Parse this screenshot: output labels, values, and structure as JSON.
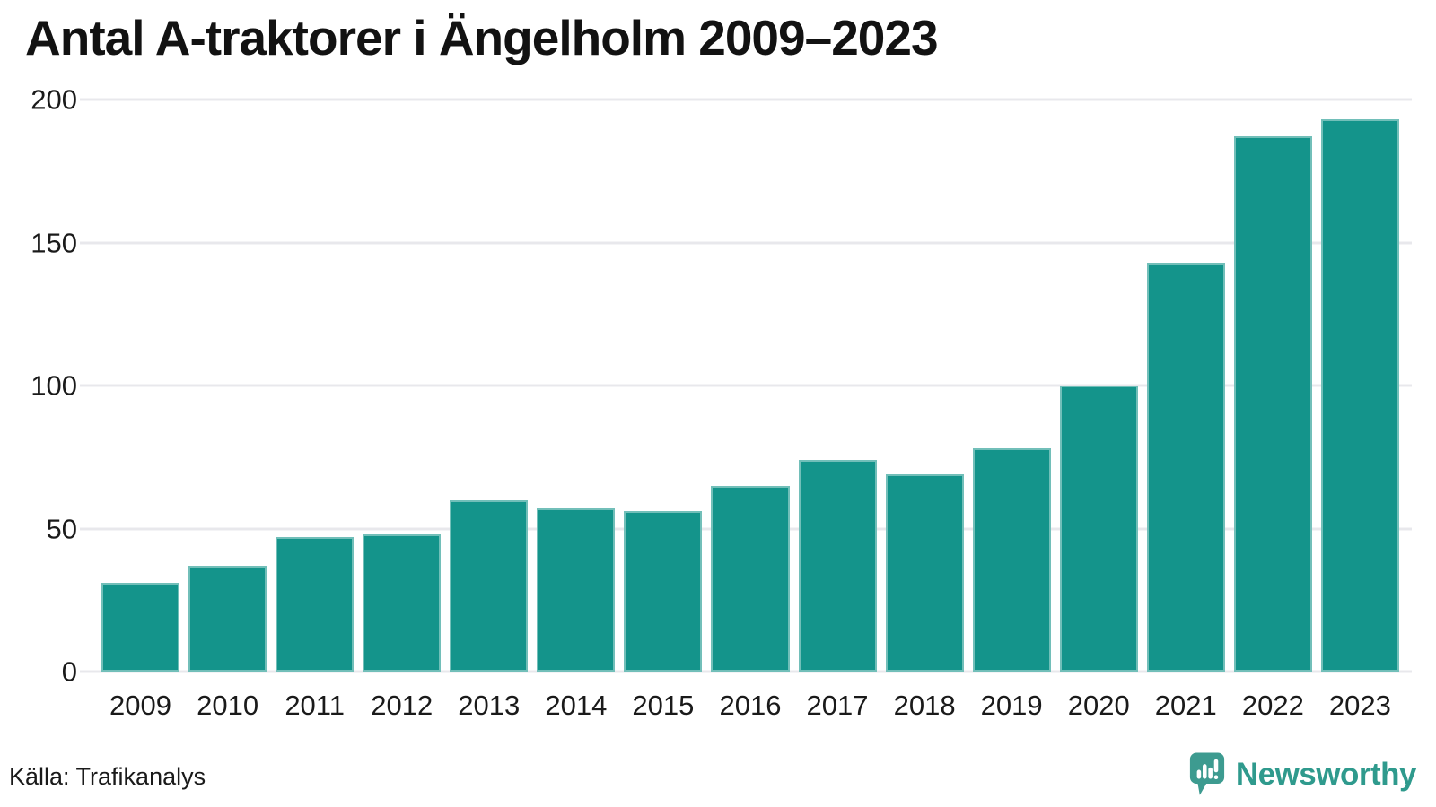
{
  "header": {
    "title": "Antal A-traktorer i Ängelholm 2009–2023"
  },
  "footer": {
    "source": "Källa: Trafikanalys",
    "brand": "Newsworthy"
  },
  "icons": {
    "brand_icon": "newsworthy-speech-bubble-bar-chart-icon"
  },
  "colors": {
    "bar": "#14948b",
    "grid": "#e8e8ec",
    "title_text": "#121212",
    "axis_text": "#1a1a1a",
    "brand_text": "#2f9a8d",
    "brand_icon": "#3d9b90",
    "background": "#ffffff"
  },
  "chart_data": {
    "type": "bar",
    "title": "Antal A-traktorer i Ängelholm 2009–2023",
    "categories": [
      "2009",
      "2010",
      "2011",
      "2012",
      "2013",
      "2014",
      "2015",
      "2016",
      "2017",
      "2018",
      "2019",
      "2020",
      "2021",
      "2022",
      "2023"
    ],
    "values": [
      31,
      37,
      47,
      48,
      60,
      57,
      56,
      65,
      74,
      69,
      78,
      100,
      143,
      187,
      193
    ],
    "xlabel": "",
    "ylabel": "",
    "ylim": [
      0,
      200
    ],
    "yticks": [
      0,
      50,
      100,
      150,
      200
    ],
    "grid": "horizontal",
    "legend": "none",
    "bar_color": "#14948b"
  }
}
